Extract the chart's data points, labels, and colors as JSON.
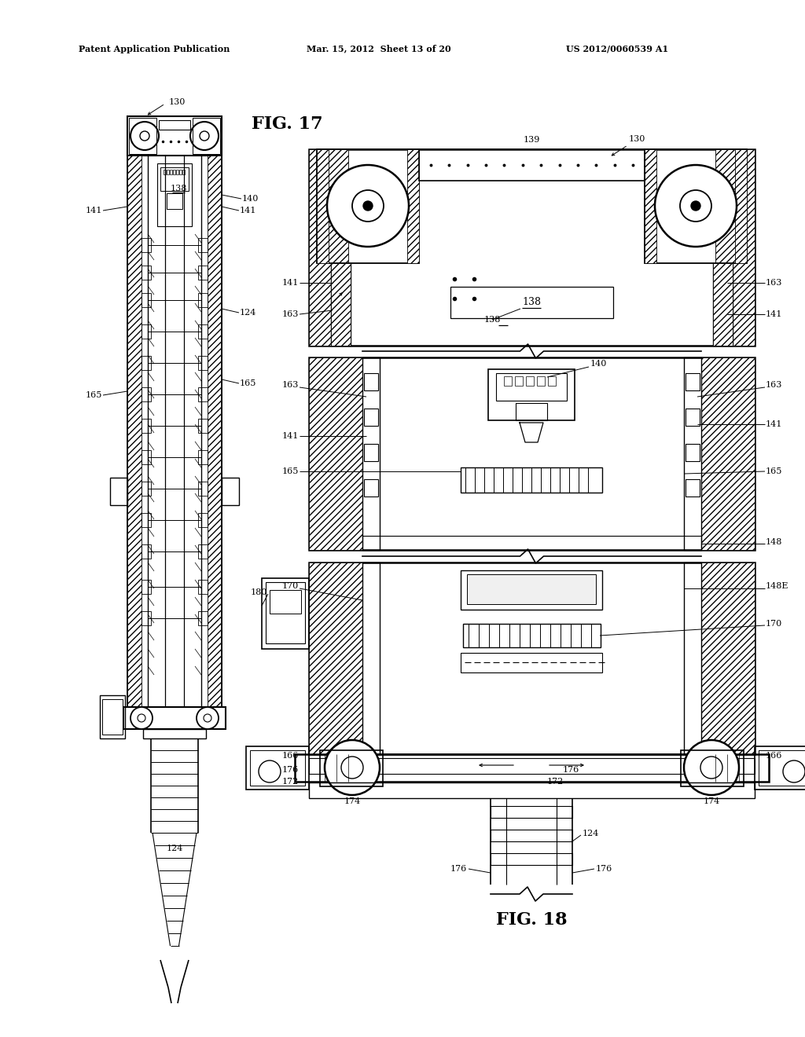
{
  "bg": "#ffffff",
  "header_left": "Patent Application Publication",
  "header_mid": "Mar. 15, 2012  Sheet 13 of 20",
  "header_right": "US 2012/0060539 A1",
  "fig17_label": "FIG. 17",
  "fig18_label": "FIG. 18"
}
